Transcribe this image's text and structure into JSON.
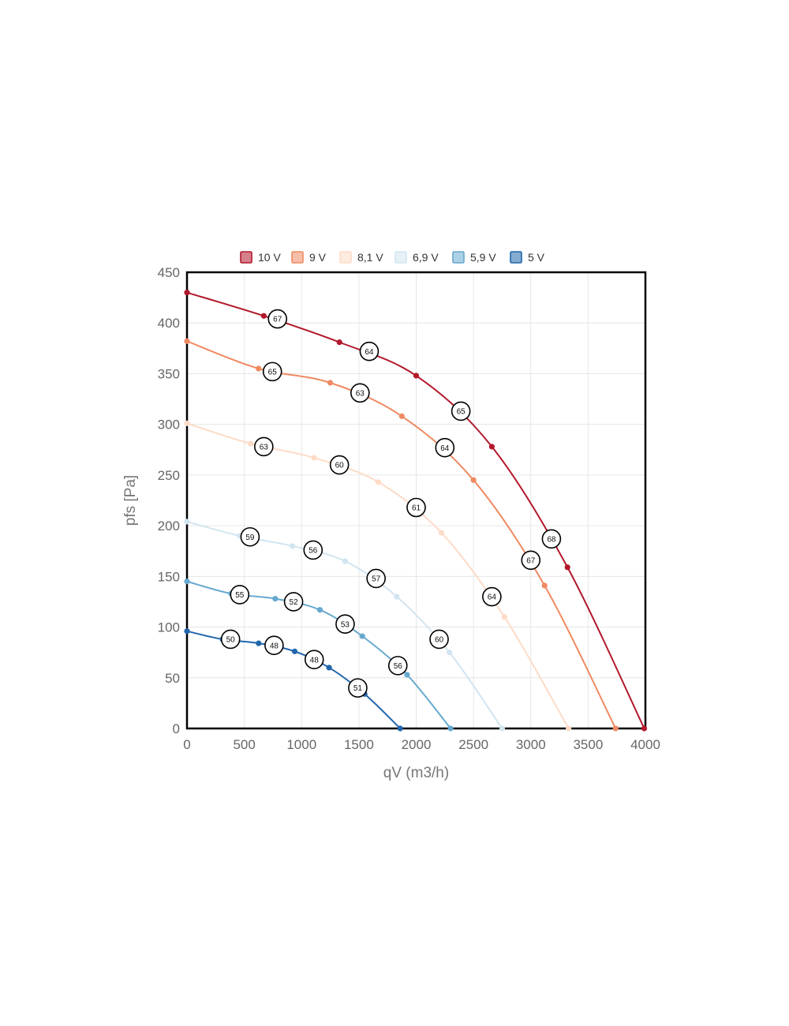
{
  "chart_data": {
    "type": "line",
    "xlabel": "qV (m3/h)",
    "ylabel": "pfs [Pa]",
    "xlim": [
      0,
      4000
    ],
    "ylim": [
      0,
      450
    ],
    "xticks": [
      0,
      500,
      1000,
      1500,
      2000,
      2500,
      3000,
      3500,
      4000
    ],
    "yticks": [
      0,
      50,
      100,
      150,
      200,
      250,
      300,
      350,
      400,
      450
    ],
    "grid": true,
    "legend_position": "top",
    "series": [
      {
        "name": "10 V",
        "color": "#b2182b",
        "points": [
          [
            0,
            430
          ],
          [
            670,
            407
          ],
          [
            1330,
            381
          ],
          [
            2000,
            348
          ],
          [
            2660,
            278
          ],
          [
            3320,
            159
          ],
          [
            3990,
            0
          ]
        ],
        "labels": [
          [
            790,
            404,
            "67"
          ],
          [
            1590,
            372,
            "64"
          ],
          [
            2390,
            313,
            "65"
          ],
          [
            3180,
            187,
            "68"
          ]
        ]
      },
      {
        "name": "9 V",
        "color": "#ef8a62",
        "points": [
          [
            0,
            382
          ],
          [
            625,
            355
          ],
          [
            1250,
            341
          ],
          [
            1875,
            308
          ],
          [
            2500,
            245
          ],
          [
            3120,
            141
          ],
          [
            3740,
            0
          ]
        ],
        "labels": [
          [
            745,
            352,
            "65"
          ],
          [
            1510,
            331,
            "63"
          ],
          [
            2250,
            277,
            "64"
          ],
          [
            3000,
            166,
            "67"
          ]
        ]
      },
      {
        "name": "8,1 V",
        "color": "#fddbc7",
        "points": [
          [
            0,
            301
          ],
          [
            555,
            281
          ],
          [
            1110,
            267
          ],
          [
            1670,
            243
          ],
          [
            2220,
            193
          ],
          [
            2770,
            110
          ],
          [
            3330,
            0
          ]
        ],
        "labels": [
          [
            670,
            278,
            "63"
          ],
          [
            1330,
            260,
            "60"
          ],
          [
            2000,
            218,
            "61"
          ],
          [
            2660,
            130,
            "64"
          ]
        ]
      },
      {
        "name": "6,9 V",
        "color": "#d1e5f0",
        "points": [
          [
            0,
            204
          ],
          [
            460,
            190
          ],
          [
            920,
            180
          ],
          [
            1380,
            165
          ],
          [
            1830,
            130
          ],
          [
            2290,
            75
          ],
          [
            2750,
            0
          ]
        ],
        "labels": [
          [
            550,
            189,
            "59"
          ],
          [
            1100,
            176,
            "56"
          ],
          [
            1650,
            148,
            "57"
          ],
          [
            2200,
            88,
            "60"
          ]
        ]
      },
      {
        "name": "5,9 V",
        "color": "#67a9cf",
        "points": [
          [
            0,
            145
          ],
          [
            385,
            133
          ],
          [
            770,
            128
          ],
          [
            1160,
            117
          ],
          [
            1530,
            91
          ],
          [
            1920,
            53
          ],
          [
            2300,
            0
          ]
        ],
        "labels": [
          [
            460,
            132,
            "55"
          ],
          [
            930,
            125,
            "52"
          ],
          [
            1380,
            103,
            "53"
          ],
          [
            1840,
            62,
            "56"
          ]
        ]
      },
      {
        "name": "5 V",
        "color": "#2166ac",
        "points": [
          [
            0,
            96
          ],
          [
            310,
            88
          ],
          [
            625,
            84
          ],
          [
            940,
            76
          ],
          [
            1240,
            60
          ],
          [
            1550,
            34
          ],
          [
            1860,
            0
          ]
        ],
        "labels": [
          [
            380,
            88,
            "50"
          ],
          [
            760,
            82,
            "48"
          ],
          [
            1110,
            68,
            "48"
          ],
          [
            1490,
            40,
            "51"
          ]
        ]
      }
    ]
  }
}
